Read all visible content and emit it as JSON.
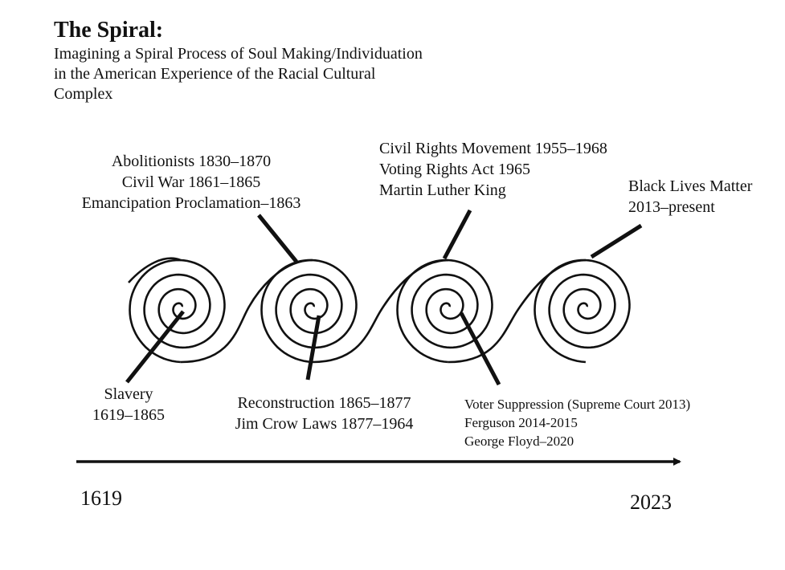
{
  "title": "The Spiral:",
  "subtitle": [
    "Imagining a Spiral Process of Soul Making/Individuation",
    "in the American Experience of the Racial Cultural",
    "Complex"
  ],
  "labels": {
    "abolition": [
      "Abolitionists 1830–1870",
      "Civil War 1861–1865",
      "Emancipation Proclamation–1863"
    ],
    "civil_rights": [
      "Civil Rights Movement 1955–1968",
      "Voting Rights Act  1965",
      "Martin Luther King"
    ],
    "blm": [
      "Black Lives Matter",
      "2013–present"
    ],
    "slavery": [
      "Slavery",
      "1619–1865"
    ],
    "reconstruction": [
      "Reconstruction 1865–1877",
      "Jim Crow Laws  1877–1964"
    ],
    "voter": [
      "Voter Suppression (Supreme Court 2013)",
      "Ferguson 2014-2015",
      "George Floyd–2020"
    ]
  },
  "timeline": {
    "start": "1619",
    "end": "2023"
  },
  "colors": {
    "ink": "#111111"
  }
}
